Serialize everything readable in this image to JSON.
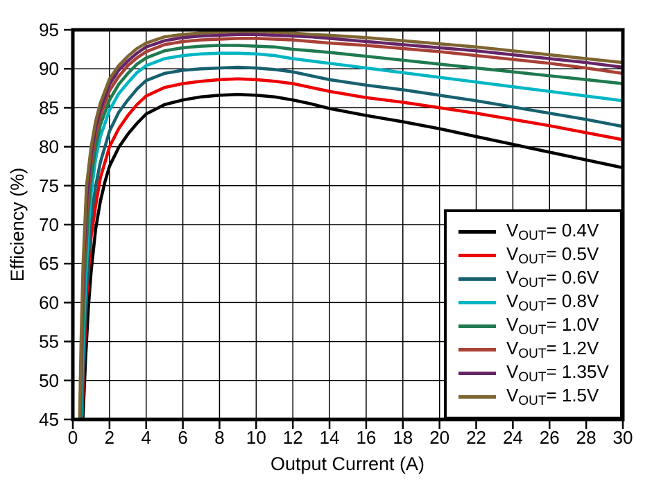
{
  "chart_data": {
    "type": "line",
    "title": "",
    "xlabel": "Output Current (A)",
    "ylabel": "Efficiency (%)",
    "xlim": [
      0,
      30
    ],
    "ylim": [
      45,
      95
    ],
    "x_ticks": [
      "0",
      "2",
      "4",
      "6",
      "8",
      "10",
      "12",
      "14",
      "16",
      "18",
      "20",
      "22",
      "24",
      "26",
      "28",
      "30"
    ],
    "y_ticks": [
      "45",
      "50",
      "55",
      "60",
      "65",
      "70",
      "75",
      "80",
      "85",
      "90",
      "95"
    ],
    "grid": true,
    "grid_color": "#000000",
    "frame_color": "#000000",
    "legend": {
      "position": "bottom-right",
      "label_prefix": "V",
      "label_sub": "OUT",
      "label_eq": "= "
    },
    "series": [
      {
        "name": "VOUT= 0.4V",
        "voltage": "0.4V",
        "color": "#000000",
        "points": [
          [
            0.55,
            45
          ],
          [
            0.7,
            53
          ],
          [
            0.85,
            59.5
          ],
          [
            1,
            64
          ],
          [
            1.25,
            69.5
          ],
          [
            1.5,
            73
          ],
          [
            1.75,
            75.5
          ],
          [
            2,
            77.5
          ],
          [
            2.5,
            79.9
          ],
          [
            3,
            81.6
          ],
          [
            3.5,
            83
          ],
          [
            4,
            84.2
          ],
          [
            5,
            85.4
          ],
          [
            6,
            86.0
          ],
          [
            7,
            86.4
          ],
          [
            8,
            86.6
          ],
          [
            9,
            86.7
          ],
          [
            10,
            86.6
          ],
          [
            11,
            86.4
          ],
          [
            12,
            86.0
          ],
          [
            13,
            85.5
          ],
          [
            14,
            84.9
          ],
          [
            16,
            84.0
          ],
          [
            18,
            83.2
          ],
          [
            20,
            82.3
          ],
          [
            22,
            81.3
          ],
          [
            24,
            80.3
          ],
          [
            26,
            79.3
          ],
          [
            28,
            78.3
          ],
          [
            30,
            77.3
          ]
        ]
      },
      {
        "name": "VOUT= 0.5V",
        "voltage": "0.5V",
        "color": "#ee0000",
        "points": [
          [
            0.5,
            45
          ],
          [
            0.6,
            52
          ],
          [
            0.75,
            60.5
          ],
          [
            1,
            68.5
          ],
          [
            1.25,
            72.5
          ],
          [
            1.5,
            76
          ],
          [
            2,
            80
          ],
          [
            2.5,
            82.3
          ],
          [
            3,
            84
          ],
          [
            3.5,
            85.4
          ],
          [
            4,
            86.5
          ],
          [
            5,
            87.6
          ],
          [
            6,
            88.1
          ],
          [
            7,
            88.4
          ],
          [
            8,
            88.6
          ],
          [
            9,
            88.7
          ],
          [
            10,
            88.6
          ],
          [
            11,
            88.4
          ],
          [
            12,
            88.1
          ],
          [
            13,
            87.6
          ],
          [
            14,
            87.1
          ],
          [
            16,
            86.3
          ],
          [
            18,
            85.7
          ],
          [
            20,
            85.0
          ],
          [
            22,
            84.3
          ],
          [
            24,
            83.5
          ],
          [
            26,
            82.7
          ],
          [
            28,
            81.8
          ],
          [
            30,
            80.9
          ]
        ]
      },
      {
        "name": "VOUT= 0.6V",
        "voltage": "0.6V",
        "color": "#17616f",
        "points": [
          [
            0.47,
            45
          ],
          [
            0.6,
            54
          ],
          [
            0.75,
            62
          ],
          [
            1,
            71
          ],
          [
            1.25,
            75
          ],
          [
            1.5,
            78
          ],
          [
            2,
            82
          ],
          [
            2.5,
            84.4
          ],
          [
            3,
            86
          ],
          [
            3.5,
            87.4
          ],
          [
            4,
            88.5
          ],
          [
            5,
            89.4
          ],
          [
            6,
            89.8
          ],
          [
            7,
            90.0
          ],
          [
            8,
            90.1
          ],
          [
            9,
            90.2
          ],
          [
            10,
            90.1
          ],
          [
            11,
            89.9
          ],
          [
            12,
            89.6
          ],
          [
            13,
            89.1
          ],
          [
            14,
            88.6
          ],
          [
            16,
            87.9
          ],
          [
            18,
            87.3
          ],
          [
            20,
            86.6
          ],
          [
            22,
            85.9
          ],
          [
            24,
            85.1
          ],
          [
            26,
            84.3
          ],
          [
            28,
            83.5
          ],
          [
            30,
            82.6
          ]
        ]
      },
      {
        "name": "VOUT= 0.8V",
        "voltage": "0.8V",
        "color": "#00b6c4",
        "points": [
          [
            0.44,
            45
          ],
          [
            0.55,
            54
          ],
          [
            0.7,
            63
          ],
          [
            0.9,
            71
          ],
          [
            1,
            74
          ],
          [
            1.25,
            78.5
          ],
          [
            1.5,
            81.3
          ],
          [
            2,
            84.7
          ],
          [
            2.5,
            86.8
          ],
          [
            3,
            88.2
          ],
          [
            3.5,
            89.5
          ],
          [
            4,
            90.4
          ],
          [
            5,
            91.3
          ],
          [
            6,
            91.7
          ],
          [
            7,
            91.9
          ],
          [
            8,
            92.0
          ],
          [
            9,
            92.0
          ],
          [
            10,
            91.9
          ],
          [
            11,
            91.7
          ],
          [
            12,
            91.3
          ],
          [
            13,
            91.0
          ],
          [
            14,
            90.7
          ],
          [
            16,
            90.1
          ],
          [
            18,
            89.5
          ],
          [
            20,
            88.9
          ],
          [
            22,
            88.3
          ],
          [
            24,
            87.7
          ],
          [
            26,
            87.1
          ],
          [
            28,
            86.5
          ],
          [
            30,
            85.9
          ]
        ]
      },
      {
        "name": "VOUT= 1.0V",
        "voltage": "1.0V",
        "color": "#1f7a4f",
        "points": [
          [
            0.41,
            45
          ],
          [
            0.5,
            54
          ],
          [
            0.65,
            64
          ],
          [
            0.85,
            72
          ],
          [
            1,
            76
          ],
          [
            1.25,
            80
          ],
          [
            1.5,
            82.8
          ],
          [
            2,
            86
          ],
          [
            2.5,
            88
          ],
          [
            3,
            89.4
          ],
          [
            3.5,
            90.6
          ],
          [
            4,
            91.4
          ],
          [
            5,
            92.3
          ],
          [
            6,
            92.7
          ],
          [
            7,
            92.9
          ],
          [
            8,
            93.0
          ],
          [
            9,
            93.0
          ],
          [
            10,
            92.9
          ],
          [
            11,
            92.8
          ],
          [
            12,
            92.5
          ],
          [
            13,
            92.3
          ],
          [
            14,
            92.1
          ],
          [
            16,
            91.6
          ],
          [
            18,
            91.1
          ],
          [
            20,
            90.6
          ],
          [
            22,
            90.1
          ],
          [
            24,
            89.6
          ],
          [
            26,
            89.1
          ],
          [
            28,
            88.6
          ],
          [
            30,
            88.1
          ]
        ]
      },
      {
        "name": "VOUT= 1.2V",
        "voltage": "1.2V",
        "color": "#a94136",
        "points": [
          [
            0.39,
            45
          ],
          [
            0.48,
            55
          ],
          [
            0.6,
            64
          ],
          [
            0.8,
            73
          ],
          [
            1,
            78
          ],
          [
            1.25,
            81.5
          ],
          [
            1.5,
            84
          ],
          [
            2,
            87.2
          ],
          [
            2.5,
            89
          ],
          [
            3,
            90.4
          ],
          [
            3.5,
            91.4
          ],
          [
            4,
            92.2
          ],
          [
            5,
            93.1
          ],
          [
            6,
            93.5
          ],
          [
            7,
            93.7
          ],
          [
            8,
            93.8
          ],
          [
            9,
            93.9
          ],
          [
            10,
            93.9
          ],
          [
            11,
            93.8
          ],
          [
            12,
            93.7
          ],
          [
            13,
            93.5
          ],
          [
            14,
            93.3
          ],
          [
            16,
            93.0
          ],
          [
            18,
            92.6
          ],
          [
            20,
            92.2
          ],
          [
            22,
            91.7
          ],
          [
            24,
            91.2
          ],
          [
            26,
            90.7
          ],
          [
            28,
            90.1
          ],
          [
            30,
            89.4
          ]
        ]
      },
      {
        "name": "VOUT= 1.35V",
        "voltage": "1.35V",
        "color": "#662566",
        "points": [
          [
            0.38,
            45
          ],
          [
            0.46,
            55
          ],
          [
            0.58,
            65
          ],
          [
            0.78,
            74
          ],
          [
            1,
            79
          ],
          [
            1.25,
            82.5
          ],
          [
            1.5,
            84.8
          ],
          [
            2,
            88
          ],
          [
            2.5,
            89.8
          ],
          [
            3,
            91
          ],
          [
            3.5,
            92
          ],
          [
            4,
            92.8
          ],
          [
            5,
            93.6
          ],
          [
            6,
            94.0
          ],
          [
            7,
            94.2
          ],
          [
            8,
            94.3
          ],
          [
            9,
            94.4
          ],
          [
            10,
            94.4
          ],
          [
            11,
            94.3
          ],
          [
            12,
            94.2
          ],
          [
            13,
            94.1
          ],
          [
            14,
            93.9
          ],
          [
            16,
            93.5
          ],
          [
            18,
            93.1
          ],
          [
            20,
            92.7
          ],
          [
            22,
            92.3
          ],
          [
            24,
            91.8
          ],
          [
            26,
            91.3
          ],
          [
            28,
            90.8
          ],
          [
            30,
            90.2
          ]
        ]
      },
      {
        "name": "VOUT= 1.5V",
        "voltage": "1.5V",
        "color": "#7e6531",
        "points": [
          [
            0.37,
            45
          ],
          [
            0.45,
            55
          ],
          [
            0.56,
            65
          ],
          [
            0.75,
            75
          ],
          [
            1,
            80
          ],
          [
            1.25,
            83.3
          ],
          [
            1.5,
            85.6
          ],
          [
            2,
            88.7
          ],
          [
            2.5,
            90.4
          ],
          [
            3,
            91.6
          ],
          [
            3.5,
            92.6
          ],
          [
            4,
            93.3
          ],
          [
            5,
            94.1
          ],
          [
            6,
            94.4
          ],
          [
            7,
            94.6
          ],
          [
            8,
            94.7
          ],
          [
            9,
            94.8
          ],
          [
            10,
            94.8
          ],
          [
            11,
            94.7
          ],
          [
            12,
            94.6
          ],
          [
            13,
            94.4
          ],
          [
            14,
            94.3
          ],
          [
            16,
            94.0
          ],
          [
            18,
            93.6
          ],
          [
            20,
            93.2
          ],
          [
            22,
            92.8
          ],
          [
            24,
            92.3
          ],
          [
            26,
            91.8
          ],
          [
            28,
            91.3
          ],
          [
            30,
            90.8
          ]
        ]
      }
    ]
  }
}
